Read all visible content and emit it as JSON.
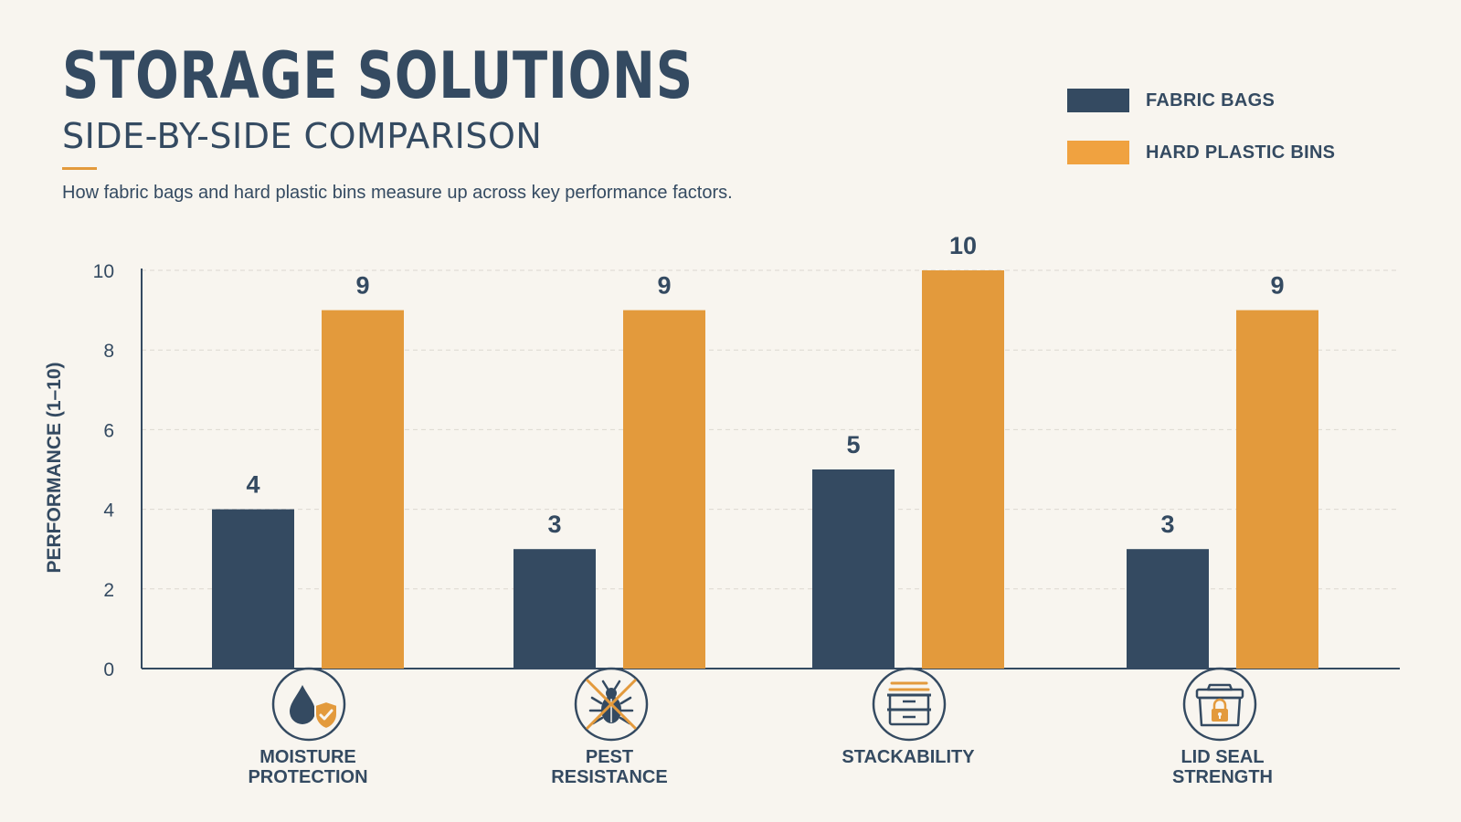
{
  "header": {
    "title": "STORAGE SOLUTIONS",
    "subtitle": "SIDE-BY-SIDE COMPARISON",
    "description": "How fabric bags and hard plastic bins measure up across key performance factors."
  },
  "colors": {
    "background": "#f8f5ef",
    "navy": "#344a61",
    "orange": "#e39a3c",
    "grid": "#dcd8d0"
  },
  "legend": [
    {
      "label": "FABRIC BAGS",
      "color": "#344a61"
    },
    {
      "label": "HARD PLASTIC BINS",
      "color": "#f0a240"
    }
  ],
  "categories": [
    {
      "label": "MOISTURE\nPROTECTION",
      "icon": "water-drop-shield-icon"
    },
    {
      "label": "PEST\nRESISTANCE",
      "icon": "no-bug-icon"
    },
    {
      "label": "STACKABILITY",
      "icon": "stacked-bins-icon"
    },
    {
      "label": "LID SEAL\nSTRENGTH",
      "icon": "locked-bin-icon"
    }
  ],
  "chart_data": {
    "type": "bar",
    "title": "STORAGE SOLUTIONS",
    "subtitle": "SIDE-BY-SIDE COMPARISON",
    "categories": [
      "MOISTURE PROTECTION",
      "PEST RESISTANCE",
      "STACKABILITY",
      "LID SEAL STRENGTH"
    ],
    "series": [
      {
        "name": "FABRIC BAGS",
        "values": [
          4,
          3,
          5,
          3
        ],
        "color": "#344a61"
      },
      {
        "name": "HARD PLASTIC BINS",
        "values": [
          9,
          9,
          10,
          9
        ],
        "color": "#e39a3c"
      }
    ],
    "ylabel": "PERFORMANCE (1–10)",
    "xlabel": "",
    "ylim": [
      0,
      10
    ],
    "yticks": [
      0,
      2,
      4,
      6,
      8,
      10
    ],
    "grid": true,
    "legend_position": "top-right",
    "data_labels": true
  }
}
